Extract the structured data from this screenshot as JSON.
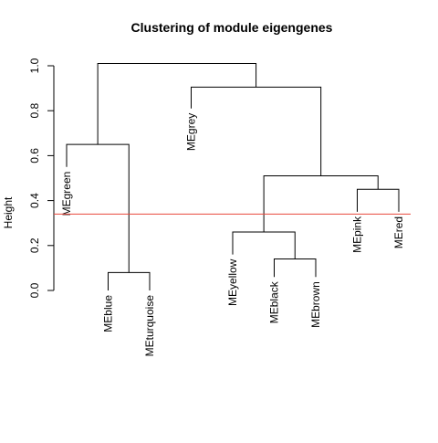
{
  "chart_data": {
    "type": "dendrogram",
    "title": "Clustering of module eigengenes",
    "xlabel": "",
    "ylabel": "Height",
    "ylim": [
      0,
      1.05
    ],
    "y_ticks": [
      0.0,
      0.2,
      0.4,
      0.6,
      0.8,
      1.0
    ],
    "y_tick_labels": [
      "0.0",
      "0.2",
      "0.4",
      "0.6",
      "0.8",
      "1.0"
    ],
    "leaves": [
      {
        "label": "MEgreen",
        "height": 0.55
      },
      {
        "label": "MEblue",
        "height": 0.0
      },
      {
        "label": "MEturquoise",
        "height": 0.0
      },
      {
        "label": "MEgrey",
        "height": 0.81
      },
      {
        "label": "MEyellow",
        "height": 0.16
      },
      {
        "label": "MEblack",
        "height": 0.06
      },
      {
        "label": "MEbrown",
        "height": 0.06
      },
      {
        "label": "MEpink",
        "height": 0.35
      },
      {
        "label": "MEred",
        "height": 0.35
      }
    ],
    "merges": [
      {
        "left": "L1",
        "right": "L2",
        "height": 0.08
      },
      {
        "left": "L0",
        "right": "M0",
        "height": 0.65
      },
      {
        "left": "L5",
        "right": "L6",
        "height": 0.14
      },
      {
        "left": "L4",
        "right": "M2",
        "height": 0.26
      },
      {
        "left": "L7",
        "right": "L8",
        "height": 0.45
      },
      {
        "left": "M3",
        "right": "M4",
        "height": 0.51
      },
      {
        "left": "L3",
        "right": "M5",
        "height": 0.905
      },
      {
        "left": "M1",
        "right": "M6",
        "height": 1.01
      }
    ],
    "cut_height": 0.34,
    "cut_color": "#e8483d",
    "line_color": "#000000",
    "grid": false
  }
}
